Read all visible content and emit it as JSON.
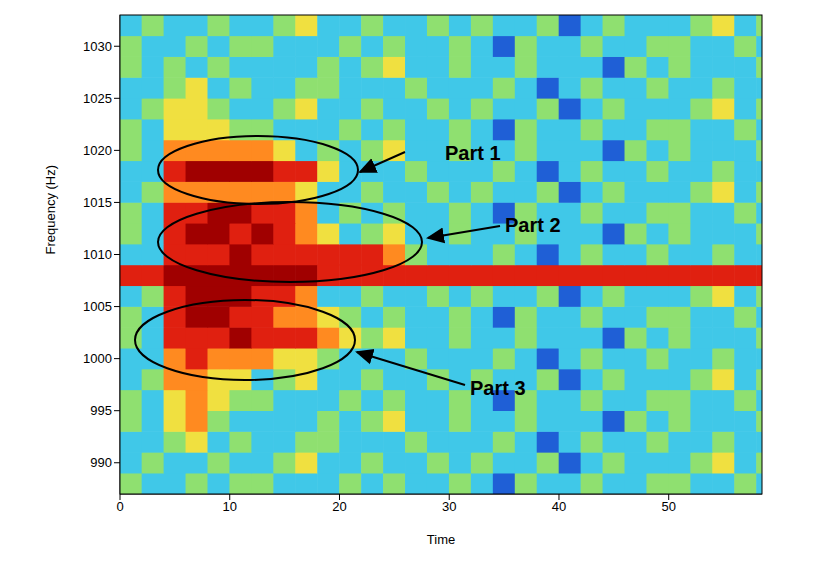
{
  "chart_data": {
    "type": "heatmap",
    "xlabel": "Time",
    "ylabel": "Frequency (Hz)",
    "xlim": [
      0,
      58.5
    ],
    "ylim": [
      987,
      1033
    ],
    "xticks": [
      0,
      10,
      20,
      30,
      40,
      50
    ],
    "yticks": [
      990,
      995,
      1000,
      1005,
      1010,
      1015,
      1020,
      1025,
      1030
    ],
    "zlim": [
      0,
      6
    ],
    "x": [
      1,
      3,
      5,
      7,
      9,
      11,
      13,
      15,
      17,
      19,
      21,
      23,
      25,
      27,
      29,
      31,
      33,
      35,
      37,
      39,
      41,
      43,
      45,
      47,
      49,
      51,
      53,
      55,
      57,
      59
    ],
    "y": [
      988,
      990,
      992,
      994,
      996,
      998,
      1000,
      1002,
      1004,
      1006,
      1008,
      1010,
      1012,
      1014,
      1016,
      1018,
      1020,
      1022,
      1024,
      1026,
      1028,
      1030,
      1032
    ],
    "z": [
      [
        2,
        1,
        1,
        2,
        1,
        2,
        2,
        1,
        1,
        1,
        2,
        1,
        2,
        1,
        1,
        2,
        1,
        0,
        2,
        1,
        1,
        2,
        1,
        1,
        2,
        2,
        1,
        1,
        2,
        1
      ],
      [
        1,
        2,
        1,
        1,
        2,
        1,
        1,
        2,
        3,
        1,
        1,
        2,
        1,
        1,
        2,
        1,
        2,
        1,
        1,
        2,
        0,
        1,
        2,
        1,
        1,
        1,
        2,
        3,
        1,
        2
      ],
      [
        1,
        1,
        2,
        3,
        1,
        2,
        1,
        1,
        2,
        2,
        1,
        1,
        1,
        2,
        1,
        1,
        1,
        2,
        1,
        0,
        1,
        2,
        1,
        1,
        2,
        1,
        1,
        2,
        1,
        1
      ],
      [
        2,
        1,
        3,
        4,
        2,
        1,
        1,
        1,
        1,
        2,
        1,
        2,
        3,
        1,
        1,
        2,
        1,
        1,
        2,
        1,
        1,
        1,
        0,
        2,
        1,
        2,
        1,
        1,
        1,
        2
      ],
      [
        2,
        1,
        3,
        4,
        3,
        2,
        2,
        1,
        1,
        1,
        2,
        1,
        2,
        1,
        1,
        2,
        1,
        0,
        2,
        1,
        1,
        2,
        1,
        1,
        2,
        2,
        1,
        1,
        2,
        1
      ],
      [
        1,
        2,
        4,
        4,
        3,
        3,
        1,
        2,
        3,
        1,
        1,
        2,
        1,
        1,
        2,
        1,
        2,
        1,
        1,
        2,
        0,
        1,
        2,
        1,
        1,
        1,
        2,
        3,
        1,
        2
      ],
      [
        1,
        1,
        4,
        5,
        4,
        4,
        4,
        3,
        3,
        2,
        1,
        1,
        1,
        2,
        1,
        1,
        1,
        2,
        1,
        0,
        1,
        2,
        1,
        1,
        2,
        1,
        1,
        2,
        1,
        1
      ],
      [
        2,
        1,
        5,
        5,
        5,
        6,
        5,
        5,
        5,
        4,
        3,
        2,
        3,
        1,
        1,
        2,
        1,
        1,
        2,
        1,
        1,
        1,
        0,
        2,
        1,
        2,
        1,
        1,
        1,
        2
      ],
      [
        2,
        1,
        5,
        6,
        6,
        5,
        5,
        4,
        4,
        3,
        2,
        1,
        2,
        1,
        1,
        2,
        1,
        0,
        2,
        1,
        1,
        2,
        1,
        1,
        2,
        2,
        1,
        1,
        2,
        1
      ],
      [
        1,
        2,
        5,
        6,
        6,
        6,
        5,
        5,
        4,
        1,
        1,
        2,
        1,
        1,
        2,
        1,
        2,
        1,
        1,
        2,
        0,
        1,
        2,
        1,
        1,
        1,
        2,
        3,
        1,
        2
      ],
      [
        5,
        5,
        6,
        6,
        6,
        6,
        6,
        6,
        6,
        5,
        5,
        5,
        5,
        5,
        5,
        5,
        5,
        5,
        5,
        5,
        5,
        5,
        5,
        5,
        5,
        5,
        5,
        5,
        5,
        5
      ],
      [
        1,
        1,
        5,
        5,
        5,
        6,
        5,
        5,
        5,
        5,
        5,
        5,
        4,
        2,
        1,
        1,
        1,
        2,
        1,
        0,
        1,
        2,
        1,
        1,
        2,
        1,
        1,
        2,
        1,
        1
      ],
      [
        2,
        1,
        5,
        6,
        6,
        5,
        6,
        5,
        4,
        3,
        1,
        2,
        3,
        1,
        1,
        2,
        1,
        1,
        2,
        1,
        1,
        1,
        0,
        2,
        1,
        2,
        1,
        1,
        1,
        2
      ],
      [
        2,
        1,
        5,
        5,
        6,
        6,
        5,
        5,
        4,
        1,
        2,
        1,
        2,
        1,
        1,
        2,
        1,
        0,
        2,
        1,
        1,
        2,
        1,
        1,
        2,
        2,
        1,
        1,
        2,
        1
      ],
      [
        1,
        2,
        4,
        4,
        4,
        4,
        4,
        4,
        3,
        1,
        1,
        2,
        1,
        1,
        2,
        1,
        2,
        1,
        1,
        2,
        0,
        1,
        2,
        1,
        1,
        1,
        2,
        3,
        1,
        2
      ],
      [
        1,
        1,
        5,
        6,
        6,
        6,
        6,
        5,
        5,
        3,
        1,
        1,
        1,
        2,
        1,
        1,
        1,
        2,
        1,
        0,
        1,
        2,
        1,
        1,
        2,
        1,
        1,
        2,
        1,
        1
      ],
      [
        2,
        1,
        4,
        4,
        4,
        4,
        4,
        3,
        1,
        2,
        1,
        2,
        3,
        1,
        1,
        2,
        1,
        1,
        2,
        1,
        1,
        1,
        0,
        2,
        1,
        2,
        1,
        1,
        1,
        2
      ],
      [
        2,
        1,
        3,
        3,
        3,
        2,
        2,
        1,
        1,
        1,
        2,
        1,
        2,
        1,
        1,
        2,
        1,
        0,
        2,
        1,
        1,
        2,
        1,
        1,
        2,
        2,
        1,
        1,
        2,
        1
      ],
      [
        1,
        2,
        3,
        3,
        2,
        1,
        1,
        2,
        3,
        1,
        1,
        2,
        1,
        1,
        2,
        1,
        2,
        1,
        1,
        2,
        0,
        1,
        2,
        1,
        1,
        1,
        2,
        3,
        1,
        2
      ],
      [
        1,
        1,
        2,
        3,
        1,
        2,
        1,
        1,
        2,
        2,
        1,
        1,
        1,
        2,
        1,
        1,
        1,
        2,
        1,
        0,
        1,
        2,
        1,
        1,
        2,
        1,
        1,
        2,
        1,
        1
      ],
      [
        2,
        1,
        2,
        1,
        2,
        1,
        1,
        1,
        1,
        2,
        1,
        2,
        3,
        1,
        1,
        2,
        1,
        1,
        2,
        1,
        1,
        1,
        0,
        2,
        1,
        2,
        1,
        1,
        1,
        2
      ],
      [
        2,
        1,
        1,
        2,
        1,
        2,
        2,
        1,
        1,
        1,
        2,
        1,
        2,
        1,
        1,
        2,
        1,
        0,
        2,
        1,
        1,
        2,
        1,
        1,
        2,
        2,
        1,
        1,
        2,
        1
      ],
      [
        1,
        2,
        1,
        1,
        2,
        1,
        1,
        2,
        3,
        1,
        1,
        2,
        1,
        1,
        2,
        1,
        2,
        1,
        1,
        2,
        0,
        1,
        2,
        1,
        1,
        1,
        2,
        3,
        1,
        2
      ]
    ],
    "annotations": [
      "Part 1",
      "Part 2",
      "Part 3"
    ]
  }
}
